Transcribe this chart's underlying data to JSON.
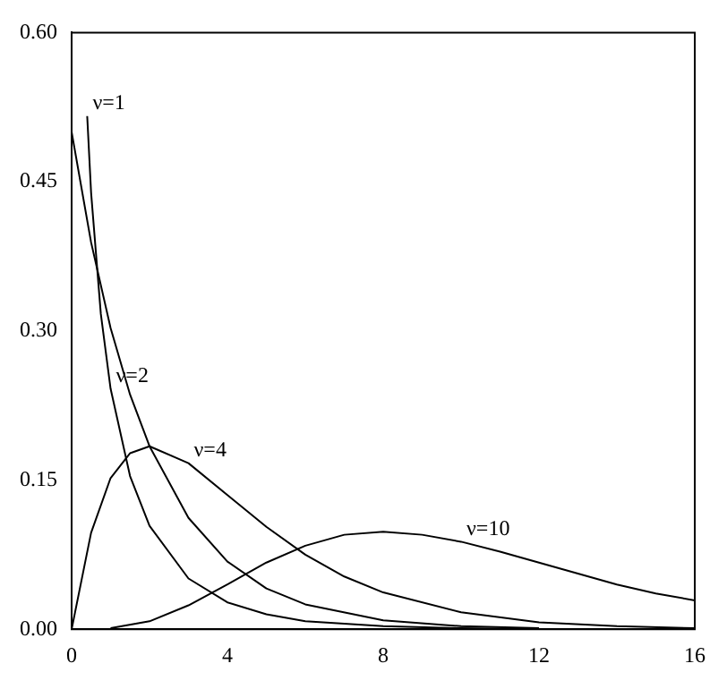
{
  "chart_data": {
    "type": "line",
    "xlim": [
      0,
      16
    ],
    "xticks": [
      0,
      4,
      8,
      12,
      16
    ],
    "ylim": [
      0,
      0.6
    ],
    "yticks": [
      {
        "value": 0,
        "label": "0.00"
      },
      {
        "value": 0.15,
        "label": "0.15"
      },
      {
        "value": 0.3,
        "label": "0.30"
      },
      {
        "value": 0.45,
        "label": "0.45"
      },
      {
        "value": 0.6,
        "label": "0.60"
      }
    ],
    "grid": false,
    "legend": false,
    "marker": "none",
    "line_style": "solid",
    "series": [
      {
        "color": "#000000",
        "x": [
          0.4,
          0.5,
          0.75,
          1,
          1.5,
          2,
          3,
          4,
          5,
          6,
          8,
          10,
          12
        ],
        "values": [
          0.516,
          0.439,
          0.317,
          0.242,
          0.154,
          0.104,
          0.051,
          0.027,
          0.015,
          0.008,
          0.003,
          0.001,
          0.0
        ]
      },
      {
        "color": "#000000",
        "x": [
          0,
          0.5,
          1,
          1.5,
          2,
          3,
          4,
          5,
          6,
          8,
          10,
          12
        ],
        "values": [
          0.5,
          0.389,
          0.303,
          0.236,
          0.184,
          0.112,
          0.068,
          0.041,
          0.025,
          0.009,
          0.003,
          0.001
        ]
      },
      {
        "color": "#000000",
        "x": [
          0,
          0.5,
          1,
          1.5,
          2,
          3,
          4,
          5,
          6,
          7,
          8,
          10,
          12,
          14,
          16
        ],
        "values": [
          0,
          0.097,
          0.152,
          0.177,
          0.184,
          0.167,
          0.135,
          0.103,
          0.075,
          0.053,
          0.037,
          0.017,
          0.007,
          0.003,
          0.001
        ]
      },
      {
        "color": "#000000",
        "x": [
          1,
          2,
          3,
          4,
          5,
          6,
          7,
          8,
          9,
          10,
          11,
          12,
          13,
          14,
          15,
          16
        ],
        "values": [
          0.001,
          0.008,
          0.024,
          0.045,
          0.067,
          0.084,
          0.095,
          0.098,
          0.095,
          0.088,
          0.078,
          0.067,
          0.056,
          0.045,
          0.036,
          0.029
        ]
      }
    ],
    "annotations": [
      {
        "text": "ν=1",
        "x": 0.4,
        "y": 0.516
      },
      {
        "text": "ν=2",
        "x": 1,
        "y": 0.242
      },
      {
        "text": "ν=4",
        "x": 3,
        "y": 0.167
      },
      {
        "text": "ν=10",
        "x": 10,
        "y": 0.088
      }
    ]
  }
}
